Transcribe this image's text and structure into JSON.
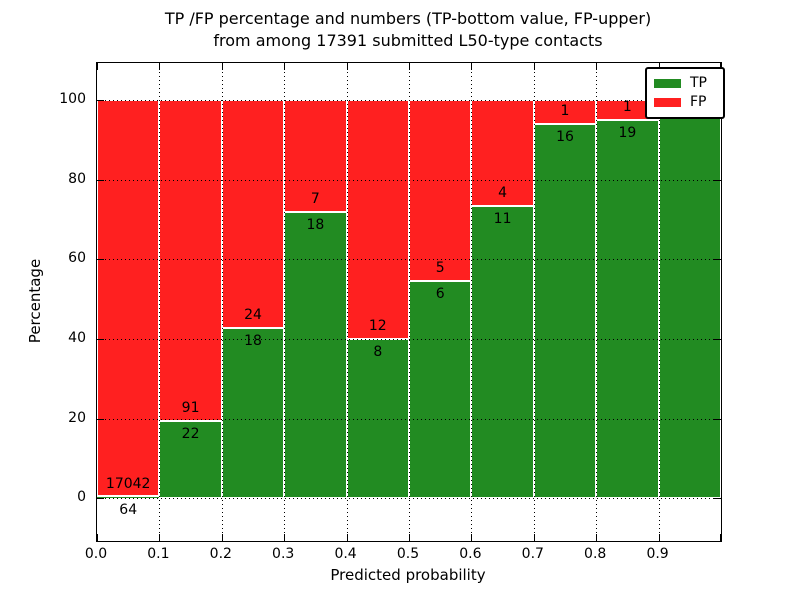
{
  "chart_data": {
    "type": "bar",
    "stacked": true,
    "title_line1": "TP /FP percentage and numbers (TP-bottom value, FP-upper)",
    "title_line2": "from among 17391 submitted L50-type contacts",
    "xlabel": "Predicted probability",
    "ylabel": "Percentage",
    "xlim": [
      0.0,
      1.0
    ],
    "ylim": [
      -10.82,
      109.41
    ],
    "grid": true,
    "x_tick_labels": [
      "0.0",
      "0.1",
      "0.2",
      "0.3",
      "0.4",
      "0.5",
      "0.6",
      "0.7",
      "0.8",
      "0.9"
    ],
    "y_tick_values": [
      0,
      20,
      40,
      60,
      80,
      100
    ],
    "bin_edges": [
      0.0,
      0.1,
      0.2,
      0.3,
      0.4,
      0.5,
      0.6,
      0.7,
      0.8,
      0.9,
      1.0
    ],
    "series": [
      {
        "name": "TP",
        "color": "#228b22",
        "values": [
          64,
          22,
          18,
          18,
          8,
          6,
          11,
          16,
          19,
          22
        ]
      },
      {
        "name": "FP",
        "color": "#ff2020",
        "values": [
          17042,
          91,
          24,
          7,
          12,
          5,
          4,
          1,
          1,
          0
        ]
      }
    ],
    "legend": {
      "position": "upper right",
      "entries": [
        {
          "label": "TP",
          "color": "#228b22"
        },
        {
          "label": "FP",
          "color": "#ff2020"
        }
      ]
    }
  },
  "colors": {
    "background": "#ffffff",
    "axis": "#000000",
    "grid": "#000000",
    "bar_edge": "#ffffff",
    "text": "#000000"
  }
}
